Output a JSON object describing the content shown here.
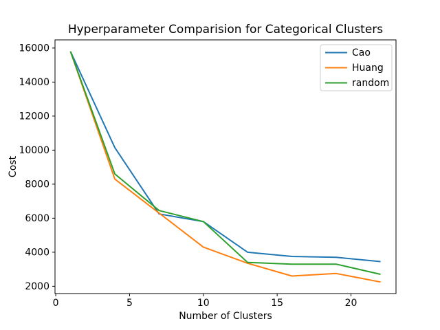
{
  "chart_data": {
    "type": "line",
    "title": "Hyperparameter Comparision for Categorical Clusters",
    "xlabel": "Number of Clusters",
    "ylabel": "Cost",
    "x": [
      1,
      4,
      7,
      10,
      13,
      16,
      19,
      22
    ],
    "series": [
      {
        "name": "Cao",
        "color": "#1f77b4",
        "values": [
          15800,
          10150,
          6250,
          5800,
          4000,
          3750,
          3700,
          3450
        ]
      },
      {
        "name": "Huang",
        "color": "#ff7f0e",
        "values": [
          15800,
          8300,
          6300,
          4300,
          3350,
          2600,
          2750,
          2250
        ]
      },
      {
        "name": "random",
        "color": "#2ca02c",
        "values": [
          15800,
          8600,
          6450,
          5800,
          3400,
          3300,
          3300,
          2700
        ]
      }
    ],
    "xticks": [
      0,
      5,
      10,
      15,
      20
    ],
    "yticks": [
      2000,
      4000,
      6000,
      8000,
      10000,
      12000,
      14000,
      16000
    ],
    "xlim": [
      -0.05,
      23.05
    ],
    "ylim": [
      1570,
      16480
    ],
    "grid": false,
    "legend": {
      "position": "upper right",
      "entries": [
        "Cao",
        "Huang",
        "random"
      ]
    },
    "colors": {
      "background": "#ffffff",
      "axes": "#000000",
      "legend_border": "#cccccc"
    }
  }
}
